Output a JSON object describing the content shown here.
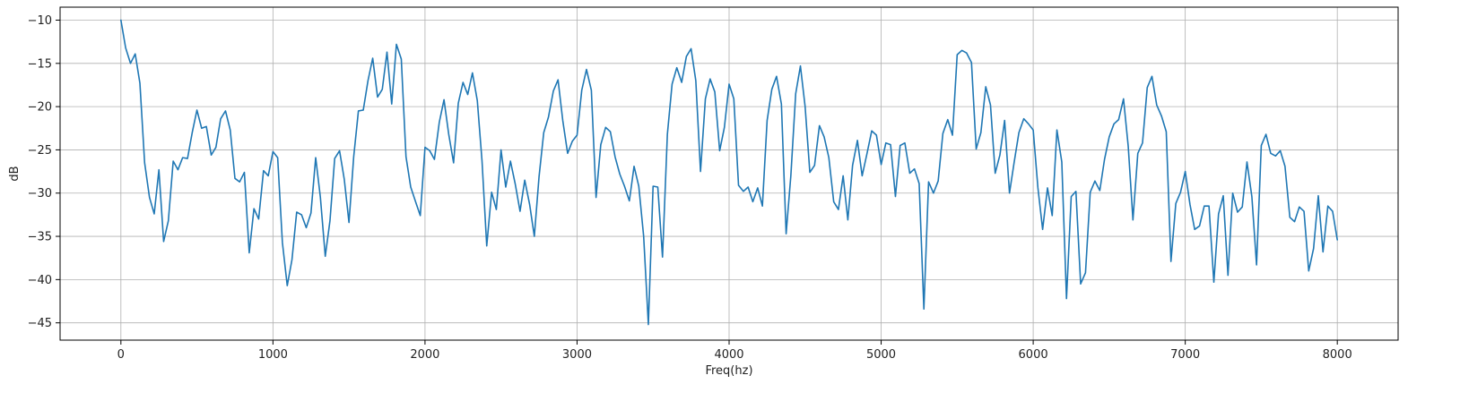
{
  "chart_data": {
    "type": "line",
    "title": "",
    "xlabel": "Freq(hz)",
    "ylabel": "dB",
    "xlim": [
      -400,
      8400
    ],
    "ylim": [
      -47,
      -8.5
    ],
    "xticks": [
      0,
      1000,
      2000,
      3000,
      4000,
      5000,
      6000,
      7000,
      8000
    ],
    "yticks": [
      -10,
      -15,
      -20,
      -25,
      -30,
      -35,
      -40,
      -45
    ],
    "grid": true,
    "legend": "none",
    "line_color": "#1f77b4",
    "series": [
      {
        "x": [
          0,
          31,
          63,
          94,
          125,
          156,
          188,
          219,
          250,
          281,
          312,
          344,
          375,
          406,
          438,
          469,
          500,
          531,
          562,
          594,
          625,
          656,
          688,
          719,
          750,
          781,
          812,
          844,
          875,
          906,
          938,
          969,
          1000,
          1031,
          1062,
          1094,
          1125,
          1156,
          1188,
          1219,
          1250,
          1281,
          1312,
          1344,
          1375,
          1406,
          1438,
          1469,
          1500,
          1531,
          1562,
          1594,
          1625,
          1656,
          1688,
          1719,
          1750,
          1781,
          1812,
          1844,
          1875,
          1906,
          1938,
          1969,
          2000,
          2031,
          2062,
          2094,
          2125,
          2156,
          2188,
          2219,
          2250,
          2281,
          2312,
          2344,
          2375,
          2406,
          2438,
          2469,
          2500,
          2531,
          2562,
          2594,
          2625,
          2656,
          2688,
          2719,
          2750,
          2781,
          2812,
          2844,
          2875,
          2906,
          2938,
          2969,
          3000,
          3031,
          3062,
          3094,
          3125,
          3156,
          3188,
          3219,
          3250,
          3281,
          3312,
          3344,
          3375,
          3406,
          3438,
          3469,
          3500,
          3531,
          3562,
          3594,
          3625,
          3656,
          3688,
          3719,
          3750,
          3781,
          3812,
          3844,
          3875,
          3906,
          3938,
          3969,
          4000,
          4031,
          4062,
          4094,
          4125,
          4156,
          4188,
          4219,
          4250,
          4281,
          4312,
          4344,
          4375,
          4406,
          4438,
          4469,
          4500,
          4531,
          4562,
          4594,
          4625,
          4656,
          4688,
          4719,
          4750,
          4781,
          4812,
          4844,
          4875,
          4906,
          4938,
          4969,
          5000,
          5031,
          5062,
          5094,
          5125,
          5156,
          5188,
          5219,
          5250,
          5281,
          5312,
          5344,
          5375,
          5406,
          5438,
          5469,
          5500,
          5531,
          5562,
          5594,
          5625,
          5656,
          5688,
          5719,
          5750,
          5781,
          5812,
          5844,
          5875,
          5906,
          5938,
          5969,
          6000,
          6031,
          6062,
          6094,
          6125,
          6156,
          6188,
          6219,
          6250,
          6281,
          6312,
          6344,
          6375,
          6406,
          6438,
          6469,
          6500,
          6531,
          6562,
          6594,
          6625,
          6656,
          6688,
          6719,
          6750,
          6781,
          6812,
          6844,
          6875,
          6906,
          6938,
          6969,
          7000,
          7031,
          7062,
          7094,
          7125,
          7156,
          7188,
          7219,
          7250,
          7281,
          7312,
          7344,
          7375,
          7406,
          7438,
          7469,
          7500,
          7531,
          7562,
          7594,
          7625,
          7656,
          7688,
          7719,
          7750,
          7781,
          7812,
          7844,
          7875,
          7906,
          7938,
          7969,
          8000
        ],
        "y": [
          -10.0,
          -13.2,
          -15.0,
          -13.9,
          -17.3,
          -26.5,
          -30.5,
          -32.4,
          -27.3,
          -35.6,
          -33.2,
          -26.3,
          -27.3,
          -25.9,
          -26.0,
          -23.0,
          -20.4,
          -22.5,
          -22.3,
          -25.6,
          -24.7,
          -21.4,
          -20.5,
          -22.7,
          -28.3,
          -28.7,
          -27.6,
          -36.9,
          -31.8,
          -33.0,
          -27.4,
          -28.0,
          -25.2,
          -25.9,
          -35.7,
          -40.7,
          -37.7,
          -32.2,
          -32.5,
          -34.0,
          -32.3,
          -25.9,
          -30.5,
          -37.3,
          -33.2,
          -26.0,
          -25.1,
          -28.4,
          -33.4,
          -25.8,
          -20.5,
          -20.4,
          -17.0,
          -14.4,
          -18.9,
          -18.0,
          -13.7,
          -19.7,
          -12.8,
          -14.5,
          -25.8,
          -29.3,
          -31.0,
          -32.6,
          -24.7,
          -25.1,
          -26.1,
          -21.8,
          -19.2,
          -23.2,
          -26.5,
          -19.6,
          -17.2,
          -18.6,
          -16.1,
          -19.3,
          -26.3,
          -36.1,
          -29.9,
          -31.9,
          -25.0,
          -29.3,
          -26.3,
          -29.0,
          -32.1,
          -28.5,
          -31.3,
          -35.0,
          -28.1,
          -23.0,
          -21.2,
          -18.2,
          -16.9,
          -21.6,
          -25.4,
          -24.0,
          -23.3,
          -18.1,
          -15.7,
          -18.1,
          -30.5,
          -24.4,
          -22.4,
          -22.9,
          -25.8,
          -27.8,
          -29.2,
          -30.9,
          -26.9,
          -29.2,
          -35.0,
          -45.2,
          -29.2,
          -29.3,
          -37.4,
          -23.2,
          -17.4,
          -15.5,
          -17.2,
          -14.2,
          -13.3,
          -17.0,
          -27.5,
          -19.1,
          -16.8,
          -18.3,
          -25.1,
          -22.4,
          -17.4,
          -19.1,
          -29.1,
          -29.8,
          -29.3,
          -31.0,
          -29.4,
          -31.5,
          -21.6,
          -18.0,
          -16.5,
          -19.7,
          -34.7,
          -28.0,
          -18.5,
          -15.3,
          -20.0,
          -27.6,
          -26.8,
          -22.2,
          -23.5,
          -25.9,
          -31.0,
          -31.9,
          -28.0,
          -33.1,
          -26.8,
          -23.9,
          -28.0,
          -25.5,
          -22.8,
          -23.3,
          -26.7,
          -24.2,
          -24.4,
          -30.4,
          -24.5,
          -24.2,
          -27.7,
          -27.2,
          -28.9,
          -43.4,
          -28.7,
          -30.0,
          -28.6,
          -23.1,
          -21.5,
          -23.3,
          -14.0,
          -13.5,
          -13.8,
          -14.9,
          -24.9,
          -23.0,
          -17.7,
          -19.8,
          -27.7,
          -25.6,
          -21.6,
          -30.0,
          -26.4,
          -23.0,
          -21.4,
          -22.0,
          -22.7,
          -29.4,
          -34.2,
          -29.4,
          -32.6,
          -22.7,
          -26.4,
          -42.2,
          -30.4,
          -29.8,
          -40.5,
          -39.2,
          -29.9,
          -28.6,
          -29.7,
          -26.1,
          -23.5,
          -22.0,
          -21.5,
          -19.1,
          -24.6,
          -33.1,
          -25.4,
          -24.2,
          -17.8,
          -16.5,
          -19.8,
          -21.1,
          -22.9,
          -37.9,
          -31.2,
          -29.9,
          -27.5,
          -31.3,
          -34.2,
          -33.8,
          -31.5,
          -31.5,
          -40.3,
          -32.4,
          -30.3,
          -39.5,
          -30.0,
          -32.2,
          -31.6,
          -26.4,
          -30.4,
          -38.3,
          -24.5,
          -23.2,
          -25.4,
          -25.7,
          -25.1,
          -26.9,
          -32.8,
          -33.3,
          -31.6,
          -32.1,
          -39.0,
          -36.4,
          -30.3,
          -36.8,
          -31.5,
          -32.1,
          -35.4
        ]
      }
    ]
  }
}
